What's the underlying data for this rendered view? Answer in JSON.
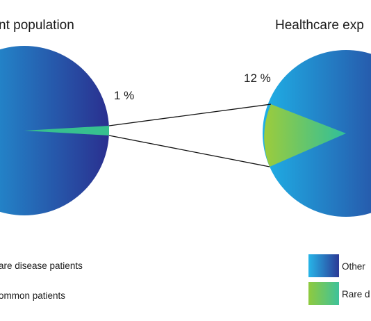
{
  "chart_data": [
    {
      "type": "pie",
      "title": "nt population",
      "slices": [
        {
          "label": "Rare disease patients",
          "value": 1
        },
        {
          "label": "Common patients",
          "value": 99
        }
      ],
      "slice_label": "1 %"
    },
    {
      "type": "pie",
      "title": "Healthcare exp",
      "slices": [
        {
          "label": "Rare d",
          "value": 12
        },
        {
          "label": "Other",
          "value": 88
        }
      ],
      "slice_label": "12 %"
    }
  ],
  "legend": {
    "left": [
      {
        "label": "are disease patients"
      },
      {
        "label": "ommon patients"
      }
    ],
    "right": [
      {
        "label": "Other",
        "color_from": "#27b5e8",
        "color_to": "#2b3a96"
      },
      {
        "label": "Rare d",
        "color_from": "#8fca3e",
        "color_to": "#3ec29a"
      }
    ]
  },
  "colors": {
    "blue_light": "#1fb0e6",
    "blue_dark": "#2a2f8f",
    "green_light": "#9ccc3c",
    "green_dark": "#2fbf9b",
    "connector": "#111111"
  }
}
